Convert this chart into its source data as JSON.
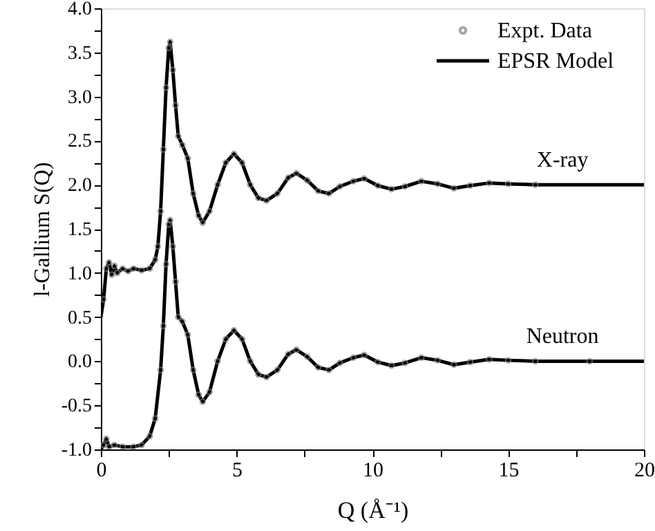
{
  "chart_data": {
    "type": "line",
    "xlabel": "Q (Å⁻¹)",
    "ylabel": "l-Gallium S(Q)",
    "xlim": [
      0,
      20
    ],
    "xticks": [
      0,
      {
        "value": 2.5,
        "label": null
      },
      5,
      {
        "value": 7.5,
        "label": null
      },
      10,
      {
        "value": 12.5,
        "label": null
      },
      15,
      {
        "value": 17.5,
        "label": null
      },
      20
    ],
    "ylim": [
      -1.0,
      4.0
    ],
    "yticks": [
      {
        "value": -1.0,
        "label": "-1.0"
      },
      {
        "value": -0.75,
        "label": null
      },
      {
        "value": -0.5,
        "label": "-0.5"
      },
      {
        "value": -0.25,
        "label": null
      },
      {
        "value": 0.0,
        "label": "0.0"
      },
      {
        "value": 0.25,
        "label": null
      },
      {
        "value": 0.5,
        "label": "0.5"
      },
      {
        "value": 0.75,
        "label": null
      },
      {
        "value": 1.0,
        "label": "1.0"
      },
      {
        "value": 1.25,
        "label": null
      },
      {
        "value": 1.5,
        "label": "1.5"
      },
      {
        "value": 1.75,
        "label": null
      },
      {
        "value": 2.0,
        "label": "2.0"
      },
      {
        "value": 2.25,
        "label": null
      },
      {
        "value": 2.5,
        "label": "2.5"
      },
      {
        "value": 2.75,
        "label": null
      },
      {
        "value": 3.0,
        "label": "3.0"
      },
      {
        "value": 3.25,
        "label": null
      },
      {
        "value": 3.5,
        "label": "3.5"
      },
      {
        "value": 3.75,
        "label": null
      },
      {
        "value": 4.0,
        "label": "4.0"
      }
    ],
    "grid": false,
    "legend": "top right",
    "annotations": [
      {
        "text": "X-ray",
        "x": 17.0,
        "y": 2.0
      },
      {
        "text": "Neutron",
        "x": 17.0,
        "y": 0.0
      }
    ],
    "series": [
      {
        "name": "Expt. Data",
        "type": "scatter",
        "marker": "circle",
        "color": "#808080",
        "x": [
          0.1,
          0.2,
          0.3,
          0.4,
          0.5,
          0.6,
          0.8,
          1.0,
          1.2,
          1.5,
          1.8,
          2.0,
          2.1,
          2.2,
          2.3,
          2.4,
          2.5,
          2.55,
          2.65,
          2.75,
          2.85,
          3.0,
          3.2,
          3.4,
          3.6,
          3.75,
          4.0,
          4.3,
          4.6,
          4.9,
          5.2,
          5.5,
          5.8,
          6.1,
          6.5,
          6.9,
          7.2,
          7.6,
          8.0,
          8.4,
          8.8,
          9.3,
          9.7,
          10.2,
          10.7,
          11.2,
          11.8,
          12.4,
          13.0,
          13.6,
          14.3,
          15.0,
          16.0
        ],
        "values": [
          0.7,
          1.05,
          1.12,
          0.98,
          1.08,
          1.0,
          1.05,
          1.02,
          1.05,
          1.03,
          1.05,
          1.15,
          1.3,
          1.7,
          2.4,
          3.1,
          3.55,
          3.62,
          3.3,
          2.9,
          2.55,
          2.45,
          2.3,
          1.9,
          1.65,
          1.57,
          1.7,
          2.0,
          2.25,
          2.35,
          2.25,
          2.0,
          1.85,
          1.82,
          1.9,
          2.08,
          2.13,
          2.05,
          1.93,
          1.9,
          1.98,
          2.04,
          2.07,
          1.99,
          1.95,
          1.98,
          2.04,
          2.01,
          1.96,
          1.99,
          2.02,
          2.01,
          2.0
        ]
      },
      {
        "name": "EPSR Model",
        "type": "line",
        "marker": "none",
        "color": "#000000",
        "x": [
          0,
          0.1,
          0.2,
          0.3,
          0.4,
          0.5,
          0.6,
          0.8,
          1.0,
          1.2,
          1.5,
          1.8,
          2.0,
          2.1,
          2.2,
          2.3,
          2.4,
          2.5,
          2.55,
          2.65,
          2.75,
          2.85,
          3.0,
          3.2,
          3.4,
          3.6,
          3.75,
          4.0,
          4.3,
          4.6,
          4.9,
          5.2,
          5.5,
          5.8,
          6.1,
          6.5,
          6.9,
          7.2,
          7.6,
          8.0,
          8.4,
          8.8,
          9.3,
          9.7,
          10.2,
          10.7,
          11.2,
          11.8,
          12.4,
          13.0,
          13.6,
          14.3,
          15.0,
          16.0,
          18.0,
          20.0
        ],
        "values": [
          0.5,
          0.7,
          1.05,
          1.12,
          0.98,
          1.08,
          1.0,
          1.05,
          1.02,
          1.05,
          1.03,
          1.05,
          1.15,
          1.3,
          1.7,
          2.4,
          3.1,
          3.55,
          3.62,
          3.3,
          2.9,
          2.55,
          2.45,
          2.3,
          1.9,
          1.65,
          1.57,
          1.7,
          2.0,
          2.25,
          2.35,
          2.25,
          2.0,
          1.85,
          1.82,
          1.9,
          2.08,
          2.13,
          2.05,
          1.93,
          1.9,
          1.98,
          2.04,
          2.07,
          1.99,
          1.95,
          1.98,
          2.04,
          2.01,
          1.96,
          1.99,
          2.02,
          2.01,
          2.0,
          2.0,
          2.0
        ]
      },
      {
        "type": "scatter",
        "marker": "circle",
        "color": "#808080",
        "x": [
          0.1,
          0.2,
          0.3,
          0.5,
          0.8,
          1.2,
          1.5,
          1.8,
          2.0,
          2.2,
          2.3,
          2.4,
          2.5,
          2.55,
          2.65,
          2.75,
          2.85,
          3.0,
          3.2,
          3.4,
          3.6,
          3.75,
          4.0,
          4.3,
          4.6,
          4.9,
          5.2,
          5.5,
          5.8,
          6.1,
          6.5,
          6.9,
          7.2,
          7.6,
          8.0,
          8.4,
          8.8,
          9.3,
          9.7,
          10.2,
          10.7,
          11.2,
          11.8,
          12.4,
          13.0,
          13.6,
          14.3,
          15.0,
          16.0,
          18.0
        ],
        "values": [
          -0.95,
          -0.88,
          -0.97,
          -0.95,
          -0.97,
          -0.97,
          -0.95,
          -0.85,
          -0.65,
          -0.1,
          0.4,
          1.1,
          1.55,
          1.6,
          1.3,
          0.9,
          0.5,
          0.45,
          0.3,
          -0.1,
          -0.38,
          -0.46,
          -0.35,
          0.0,
          0.25,
          0.35,
          0.25,
          0.0,
          -0.15,
          -0.18,
          -0.1,
          0.08,
          0.13,
          0.05,
          -0.07,
          -0.1,
          -0.02,
          0.04,
          0.07,
          -0.01,
          -0.05,
          -0.02,
          0.04,
          0.01,
          -0.04,
          -0.01,
          0.02,
          0.01,
          0.0,
          0.0
        ]
      },
      {
        "type": "line",
        "marker": "none",
        "color": "#000000",
        "x": [
          0,
          0.1,
          0.2,
          0.3,
          0.5,
          0.8,
          1.2,
          1.5,
          1.8,
          2.0,
          2.2,
          2.3,
          2.4,
          2.5,
          2.55,
          2.65,
          2.75,
          2.85,
          3.0,
          3.2,
          3.4,
          3.6,
          3.75,
          4.0,
          4.3,
          4.6,
          4.9,
          5.2,
          5.5,
          5.8,
          6.1,
          6.5,
          6.9,
          7.2,
          7.6,
          8.0,
          8.4,
          8.8,
          9.3,
          9.7,
          10.2,
          10.7,
          11.2,
          11.8,
          12.4,
          13.0,
          13.6,
          14.3,
          15.0,
          16.0,
          18.0,
          20.0
        ],
        "values": [
          -1.0,
          -0.95,
          -0.88,
          -0.97,
          -0.95,
          -0.97,
          -0.97,
          -0.95,
          -0.85,
          -0.65,
          -0.1,
          0.4,
          1.1,
          1.55,
          1.6,
          1.3,
          0.9,
          0.5,
          0.45,
          0.3,
          -0.1,
          -0.38,
          -0.46,
          -0.35,
          0.0,
          0.25,
          0.35,
          0.25,
          0.0,
          -0.15,
          -0.18,
          -0.1,
          0.08,
          0.13,
          0.05,
          -0.07,
          -0.1,
          -0.02,
          0.04,
          0.07,
          -0.01,
          -0.05,
          -0.02,
          0.04,
          0.01,
          -0.04,
          -0.01,
          0.02,
          0.01,
          0.0,
          0.0,
          0.0
        ]
      }
    ]
  }
}
